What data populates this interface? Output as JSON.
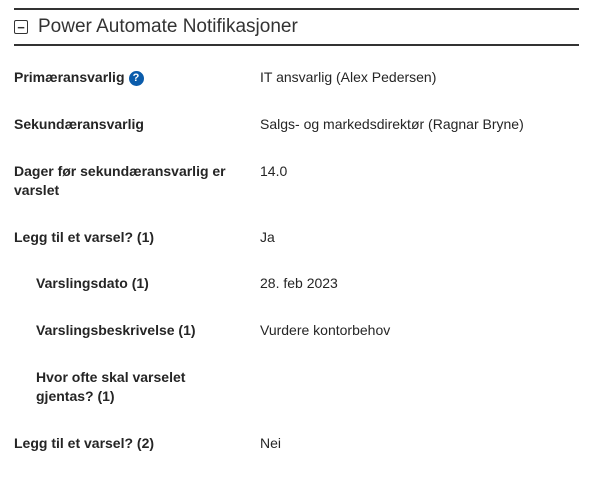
{
  "section": {
    "title": "Power Automate Notifikasjoner"
  },
  "fields": {
    "primary_responsible": {
      "label": "Primæransvarlig",
      "value": "IT ansvarlig (Alex Pedersen)"
    },
    "secondary_responsible": {
      "label": "Sekundæransvarlig",
      "value": "Salgs- og markedsdirektør (Ragnar Bryne)"
    },
    "days_before_secondary": {
      "label": "Dager før sekundæransvarlig er varslet",
      "value": "14.0"
    },
    "add_alert_1": {
      "label": "Legg til et varsel? (1)",
      "value": "Ja"
    },
    "alert_date_1": {
      "label": "Varslingsdato (1)",
      "value": "28. feb 2023"
    },
    "alert_description_1": {
      "label": "Varslingsbeskrivelse (1)",
      "value": "Vurdere kontorbehov"
    },
    "alert_repeat_1": {
      "label": "Hvor ofte skal varselet gjentas? (1)",
      "value": ""
    },
    "add_alert_2": {
      "label": "Legg til et varsel? (2)",
      "value": "Nei"
    }
  }
}
